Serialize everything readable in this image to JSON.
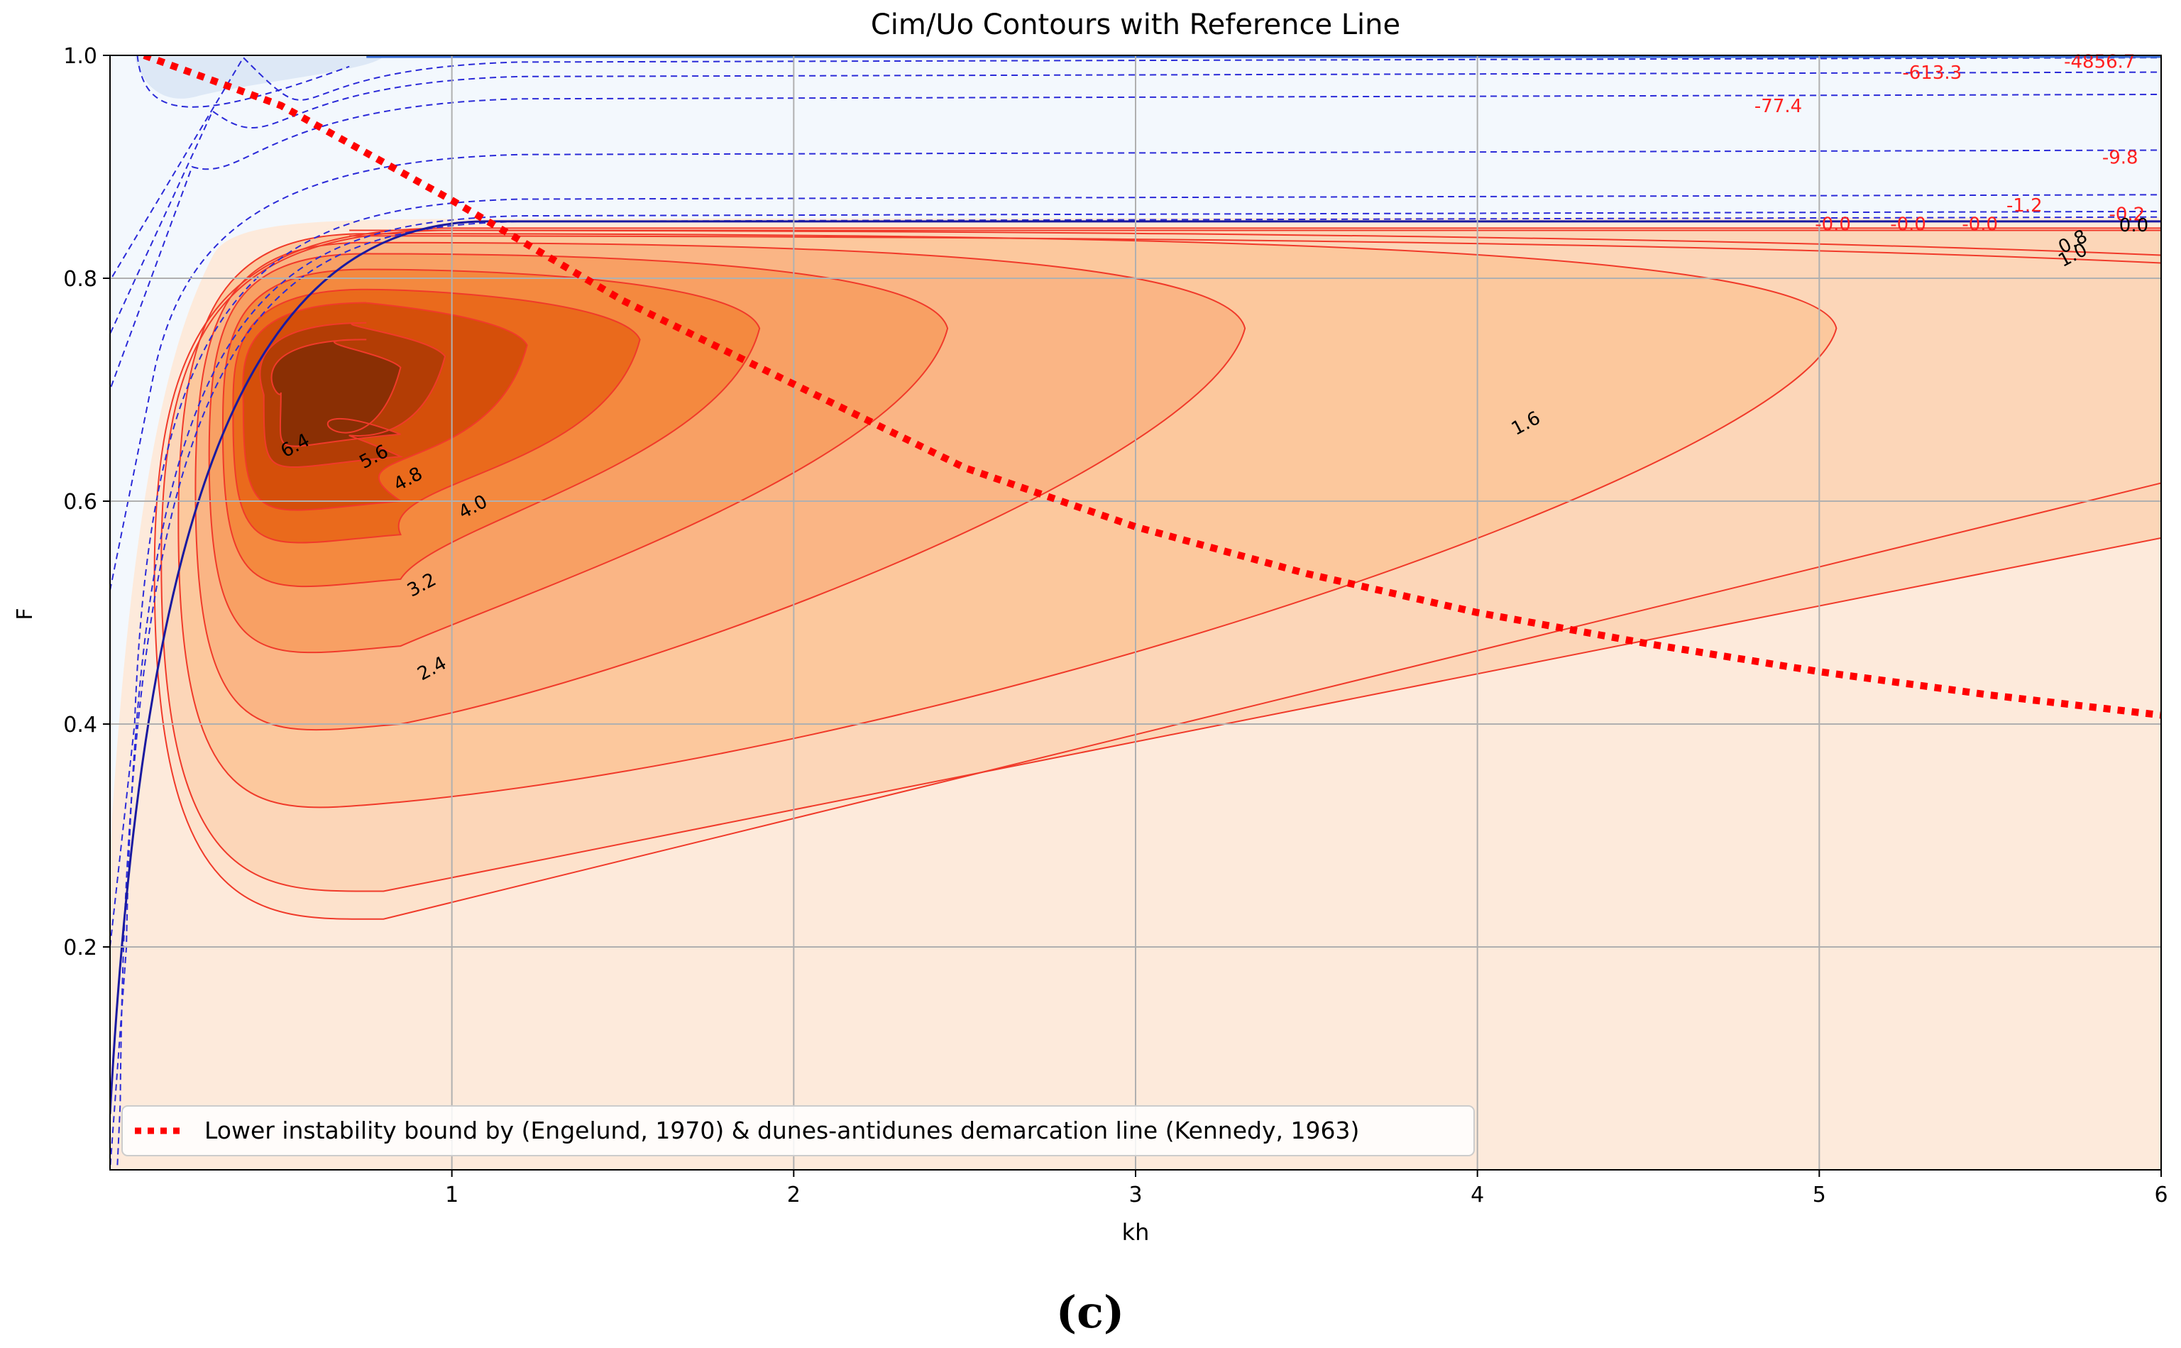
{
  "chart_data": {
    "type": "contour",
    "title": "Cim/Uo Contours with Reference Line",
    "xlabel": "kh",
    "ylabel": "F",
    "xlim": [
      0,
      6
    ],
    "ylim": [
      0,
      1.0
    ],
    "xticks": [
      1,
      2,
      3,
      4,
      5,
      6
    ],
    "xtick_labels": [
      "1",
      "2",
      "3",
      "4",
      "5",
      "6"
    ],
    "yticks": [
      0.2,
      0.4,
      0.6,
      0.8,
      1.0
    ],
    "ytick_labels": [
      "0.2",
      "0.4",
      "0.6",
      "0.8",
      "1.0"
    ],
    "grid": true,
    "legend_position": "bottom-left",
    "positive_contour_levels": [
      0.8,
      1.0,
      1.6,
      2.4,
      3.2,
      4.0,
      4.8,
      5.6,
      6.4
    ],
    "positive_contour_labels": [
      {
        "text": "6.4",
        "x": 0.55,
        "y": 0.645
      },
      {
        "text": "5.6",
        "x": 0.78,
        "y": 0.635
      },
      {
        "text": "4.8",
        "x": 0.88,
        "y": 0.615
      },
      {
        "text": "4.0",
        "x": 1.07,
        "y": 0.59
      },
      {
        "text": "3.2",
        "x": 0.92,
        "y": 0.52
      },
      {
        "text": "2.4",
        "x": 0.95,
        "y": 0.445
      },
      {
        "text": "1.6",
        "x": 4.15,
        "y": 0.665
      },
      {
        "text": "0.8",
        "x": 5.75,
        "y": 0.828
      },
      {
        "text": "1.0",
        "x": 5.75,
        "y": 0.816
      }
    ],
    "negative_contour_labels": [
      {
        "text": "-4856.7",
        "x": 5.82,
        "y": 0.994
      },
      {
        "text": "-613.3",
        "x": 5.33,
        "y": 0.984
      },
      {
        "text": "-77.4",
        "x": 4.88,
        "y": 0.954
      },
      {
        "text": "-9.8",
        "x": 5.88,
        "y": 0.908
      },
      {
        "text": "-1.2",
        "x": 5.6,
        "y": 0.865
      },
      {
        "text": "-0.2",
        "x": 5.9,
        "y": 0.857
      },
      {
        "text": "-0.0",
        "x": 5.04,
        "y": 0.848
      },
      {
        "text": "-0.0",
        "x": 5.26,
        "y": 0.848
      },
      {
        "text": "-0.0",
        "x": 5.47,
        "y": 0.848
      },
      {
        "text": "0.0",
        "x": 5.92,
        "y": 0.847
      }
    ],
    "series": [
      {
        "name": "Lower instability bound by (Engelund, 1970) & dunes-antidunes demarcation line (Kennedy, 1963)",
        "style": "dotted",
        "color": "#ff0000",
        "x": [
          0.1,
          0.5,
          1.0,
          1.5,
          2.0,
          2.5,
          3.0,
          3.5,
          4.0,
          4.5,
          5.0,
          5.5,
          6.0
        ],
        "y": [
          1.0,
          0.955,
          0.87,
          0.78,
          0.705,
          0.63,
          0.577,
          0.535,
          0.5,
          0.472,
          0.447,
          0.426,
          0.408
        ]
      }
    ],
    "colors": {
      "fill_low": "#fdeadb",
      "fill_high": "#8a2f04",
      "positive_line": "#f03a2a",
      "negative_line": "#2b2bd8",
      "negative_fill": "#f4f8fd",
      "reference_line": "#ff0000"
    }
  },
  "caption": "(c)"
}
